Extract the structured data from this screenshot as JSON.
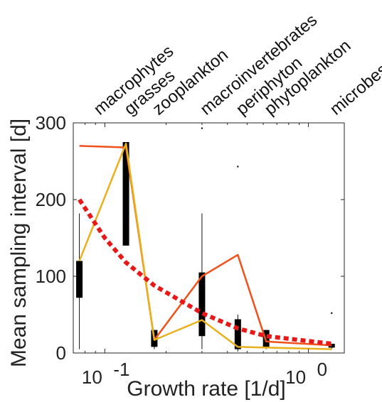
{
  "chart_data": {
    "type": "boxplot",
    "title": "",
    "xlabel": "Growth rate [1/d]",
    "ylabel": "Mean sampling interval [d]",
    "xscale": "log",
    "xlim": [
      0.07,
      1.5
    ],
    "ylim": [
      0,
      300
    ],
    "grid": false,
    "y_ticks": [
      0,
      100,
      200,
      300
    ],
    "y_tick_labels": [
      "0",
      "100",
      "200",
      "300"
    ],
    "x_tick_labels": [
      {
        "value": 0.1,
        "base": "10",
        "exp": "-1"
      },
      {
        "value": 1.0,
        "base": "10",
        "exp": "0"
      }
    ],
    "categories": [
      "macrophytes",
      "grasses",
      "zooplankton",
      "macroinvertebrates",
      "periphyton",
      "phytoplankton",
      "microbes"
    ],
    "category_x": [
      0.075,
      0.127,
      0.175,
      0.3,
      0.45,
      0.62,
      1.3
    ],
    "label_x": [
      0.09,
      0.127,
      0.175,
      0.3,
      0.45,
      0.62,
      1.3
    ],
    "boxes": [
      {
        "category": "macrophytes",
        "x": 0.075,
        "whisker_low": 5,
        "q1": 72,
        "q3": 120,
        "whisker_high": 182
      },
      {
        "category": "grasses",
        "x": 0.127,
        "whisker_low": 140,
        "q1": 140,
        "q3": 275,
        "whisker_high": 275
      },
      {
        "category": "zooplankton",
        "x": 0.175,
        "whisker_low": 5,
        "q1": 8,
        "q3": 30,
        "whisker_high": 30
      },
      {
        "category": "macroinvertebrates",
        "x": 0.3,
        "whisker_low": 5,
        "q1": 22,
        "q3": 105,
        "whisker_high": 182
      },
      {
        "category": "periphyton",
        "x": 0.45,
        "whisker_low": 2,
        "q1": 5,
        "q3": 44,
        "whisker_high": 50
      },
      {
        "category": "phytoplankton",
        "x": 0.62,
        "whisker_low": 5,
        "q1": 8,
        "q3": 30,
        "whisker_high": 30
      },
      {
        "category": "microbes",
        "x": 1.3,
        "whisker_low": 5,
        "q1": 7,
        "q3": 12,
        "whisker_high": 12
      }
    ],
    "outliers": [
      {
        "x": 0.3,
        "y": 293
      },
      {
        "x": 0.45,
        "y": 243
      },
      {
        "x": 1.3,
        "y": 52
      }
    ],
    "series": [
      {
        "color": "#f0501a",
        "style": "solid",
        "x": [
          0.075,
          0.127,
          0.175,
          0.3,
          0.45,
          0.62,
          1.3
        ],
        "y": [
          270,
          268,
          17,
          100,
          128,
          15,
          10
        ]
      },
      {
        "color": "#e8b11c",
        "style": "solid",
        "x": [
          0.075,
          0.127,
          0.175,
          0.3,
          0.45,
          0.62,
          1.3
        ],
        "y": [
          120,
          273,
          17,
          43,
          8,
          7,
          5
        ]
      },
      {
        "color": "#e81818",
        "style": "dotted",
        "x": [
          0.075,
          0.1,
          0.127,
          0.175,
          0.3,
          0.45,
          0.62,
          1.3
        ],
        "y": [
          200,
          150,
          118,
          88,
          52,
          32,
          22,
          12
        ]
      }
    ]
  }
}
